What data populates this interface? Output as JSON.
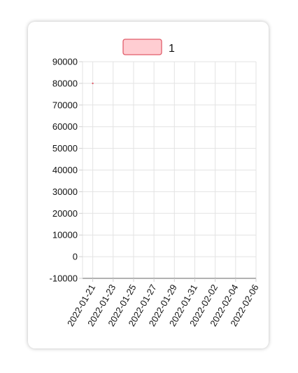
{
  "chart_data": {
    "type": "line",
    "series": [
      {
        "name": "1",
        "x": [
          "2022-01-21"
        ],
        "values": [
          80000
        ]
      }
    ],
    "x_ticks": [
      "2022-01-21",
      "2022-01-23",
      "2022-01-25",
      "2022-01-27",
      "2022-01-29",
      "2022-01-31",
      "2022-02-02",
      "2022-02-04",
      "2022-02-06"
    ],
    "xlim": [
      "2022-01-20",
      "2022-02-06"
    ],
    "y_ticks": [
      90000,
      80000,
      70000,
      60000,
      50000,
      40000,
      30000,
      20000,
      10000,
      0,
      -10000
    ],
    "ylim": [
      -10000,
      90000
    ],
    "grid": true,
    "legend": "top-center",
    "colors": {
      "fill": "#ffcdd2",
      "stroke": "#e05c6a"
    }
  }
}
